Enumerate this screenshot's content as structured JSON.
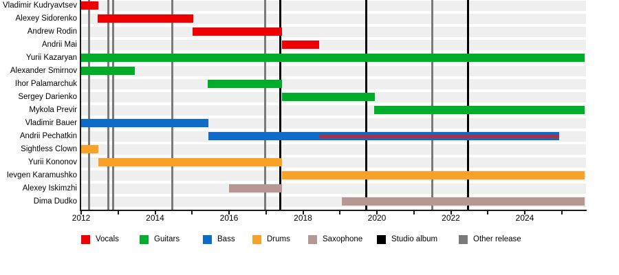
{
  "chart_data": {
    "type": "timeline",
    "description": "Band members timeline (gantt-style): horizontal bars per member by instrument, with vertical release lines",
    "x_range": [
      2012,
      2025.65
    ],
    "tick_years": [
      2012,
      2013,
      2014,
      2015,
      2016,
      2017,
      2018,
      2019,
      2020,
      2021,
      2022,
      2023,
      2024,
      2025
    ],
    "labeled_tick_years": [
      2012,
      2014,
      2016,
      2018,
      2020,
      2022,
      2024
    ],
    "grid": false,
    "legend_position": "bottom",
    "colors": {
      "vocals": "#ee0000",
      "guitars": "#00ad2a",
      "bass": "#0e6bc8",
      "drums": "#f9a227",
      "saxophone": "#b59793",
      "studio_album": "#000000",
      "other_release": "#7a7a7a",
      "vocals_overlay": "#b22f3f",
      "row_band": "#efefef"
    },
    "members": [
      {
        "name": "Vladimir Kudryavtsev",
        "role": "vocals",
        "start": 2012.0,
        "end": 2012.47
      },
      {
        "name": "Alexey Sidorenko",
        "role": "vocals",
        "start": 2012.45,
        "end": 2015.03
      },
      {
        "name": "Andrew Rodin",
        "role": "vocals",
        "start": 2015.01,
        "end": 2017.43
      },
      {
        "name": "Andrii Mai",
        "role": "vocals",
        "start": 2017.43,
        "end": 2018.44
      },
      {
        "name": "Yurii Kazaryan",
        "role": "guitars",
        "start": 2012.0,
        "end": 2025.62
      },
      {
        "name": "Alexander Smirnov",
        "role": "guitars",
        "start": 2012.0,
        "end": 2013.45
      },
      {
        "name": "Ihor Palamarchuk",
        "role": "guitars",
        "start": 2015.42,
        "end": 2017.43
      },
      {
        "name": "Sergey Darienko",
        "role": "guitars",
        "start": 2017.43,
        "end": 2019.94
      },
      {
        "name": "Mykola Previr",
        "role": "guitars",
        "start": 2019.93,
        "end": 2025.62
      },
      {
        "name": "Vladimir Bauer",
        "role": "bass",
        "start": 2012.0,
        "end": 2015.44
      },
      {
        "name": "Andrii Pechatkin",
        "role": "bass",
        "start": 2015.44,
        "end": 2024.93,
        "overlay": {
          "role": "vocals",
          "start": 2018.44,
          "end": 2024.93
        }
      },
      {
        "name": "Sightless Clown",
        "role": "drums",
        "start": 2012.0,
        "end": 2012.47
      },
      {
        "name": "Yurii Kononov",
        "role": "drums",
        "start": 2012.47,
        "end": 2017.43
      },
      {
        "name": "Ievgen Karamushko",
        "role": "drums",
        "start": 2017.43,
        "end": 2025.62
      },
      {
        "name": "Alexey Iskimzhi",
        "role": "saxophone",
        "start": 2016.0,
        "end": 2017.43
      },
      {
        "name": "Dima Dudko",
        "role": "saxophone",
        "start": 2019.05,
        "end": 2025.62
      }
    ],
    "events": {
      "studio_albums": [
        2017.38,
        2019.72,
        2022.47
      ],
      "other_releases": [
        2012.22,
        2012.74,
        2012.87,
        2014.46,
        2016.97,
        2021.49
      ]
    },
    "legend": [
      {
        "key": "vocals",
        "label": "Vocals"
      },
      {
        "key": "guitars",
        "label": "Guitars"
      },
      {
        "key": "bass",
        "label": "Bass"
      },
      {
        "key": "drums",
        "label": "Drums"
      },
      {
        "key": "saxophone",
        "label": "Saxophone"
      },
      {
        "key": "studio_album",
        "label": "Studio album"
      },
      {
        "key": "other_release",
        "label": "Other release"
      }
    ]
  }
}
